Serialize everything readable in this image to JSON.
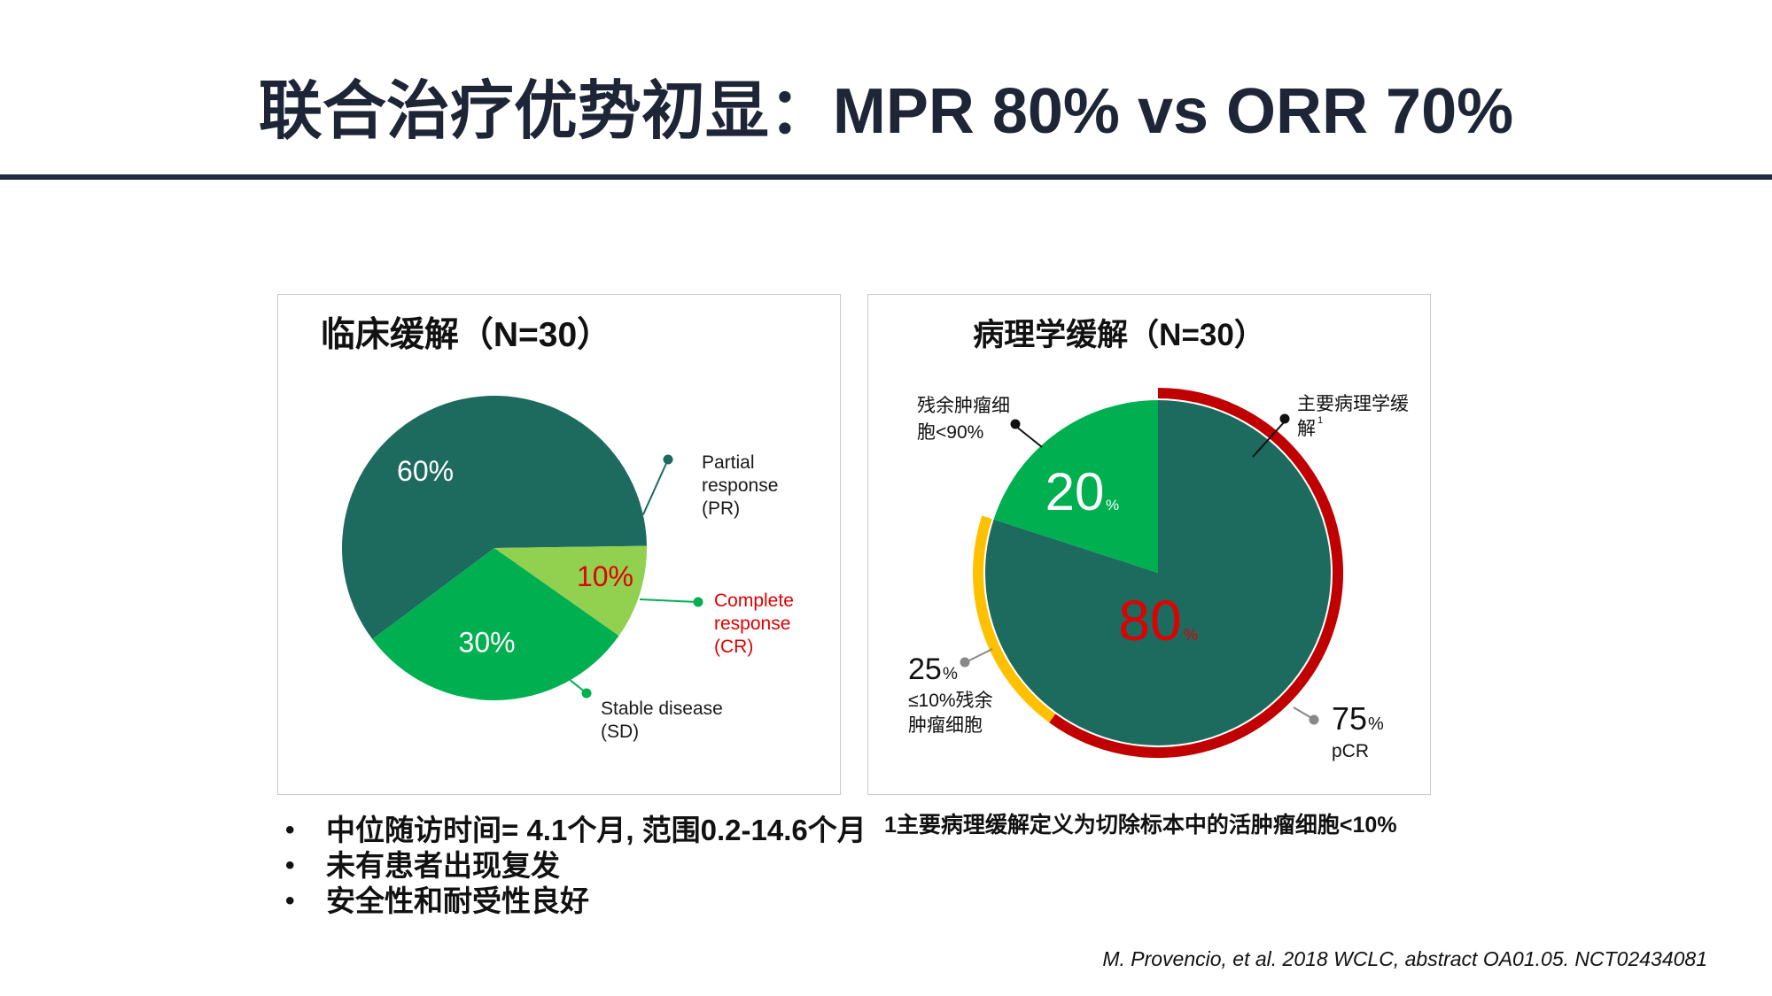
{
  "slide": {
    "title": "联合治疗优势初显：MPR 80% vs ORR 70%",
    "footnote": "1主要病理缓解定义为切除标本中的活肿瘤细胞<10%",
    "citation": "M. Provencio, et al. 2018 WCLC, abstract OA01.05. NCT02434081",
    "bullets": [
      "中位随访时间= 4.1个月, 范围0.2-14.6个月",
      "未有患者出现复发",
      "安全性和耐受性良好"
    ],
    "bullet_symbol": "•"
  },
  "chart_data": [
    {
      "type": "pie",
      "title": "临床缓解（N=30）",
      "slices": [
        {
          "label_lines": [
            "Partial",
            "response",
            "(PR)"
          ],
          "value": 60,
          "value_label": "60%",
          "color": "#1d6a5e",
          "value_color": "#ffffff",
          "label_color": "#1a1a1a"
        },
        {
          "label_lines": [
            "Complete",
            "response",
            "(CR)"
          ],
          "value": 10,
          "value_label": "10%",
          "color": "#92d050",
          "value_color": "#e00000",
          "label_color": "#e00000"
        },
        {
          "label_lines": [
            "Stable disease",
            "(SD)"
          ],
          "value": 30,
          "value_label": "30%",
          "color": "#00b050",
          "value_color": "#ffffff",
          "label_color": "#1a1a1a"
        }
      ]
    },
    {
      "type": "pie",
      "title": "病理学缓解（N=30）",
      "slices": [
        {
          "name": "主要病理学缓解",
          "value": 80,
          "value_number": "80",
          "value_unit": "%",
          "color": "#1d6a5e",
          "value_color": "#e00000"
        },
        {
          "name": "残余肿瘤细胞<90%",
          "value": 20,
          "value_number": "20",
          "value_unit": "%",
          "color": "#00b050",
          "value_color": "#ffffff"
        }
      ],
      "rings": [
        {
          "value": 75,
          "color": "#c00000"
        },
        {
          "value": 25,
          "color": "#ffc000"
        }
      ],
      "annotations": {
        "mpr_lines": [
          "主要病理学缓",
          "解"
        ],
        "mpr_superscript": "1",
        "residual_lines": [
          "残余肿瘤细",
          "胞<90%"
        ],
        "pcr_number": "75",
        "pcr_unit": "%",
        "pcr_label": "pCR",
        "low_number": "25",
        "low_unit": "%",
        "low_lines": [
          "≤10%残余",
          "肿瘤细胞"
        ]
      }
    }
  ],
  "colors": {
    "title_text": "#1d2537",
    "rule": "#1f2a44",
    "leader_gray": "#888888"
  }
}
